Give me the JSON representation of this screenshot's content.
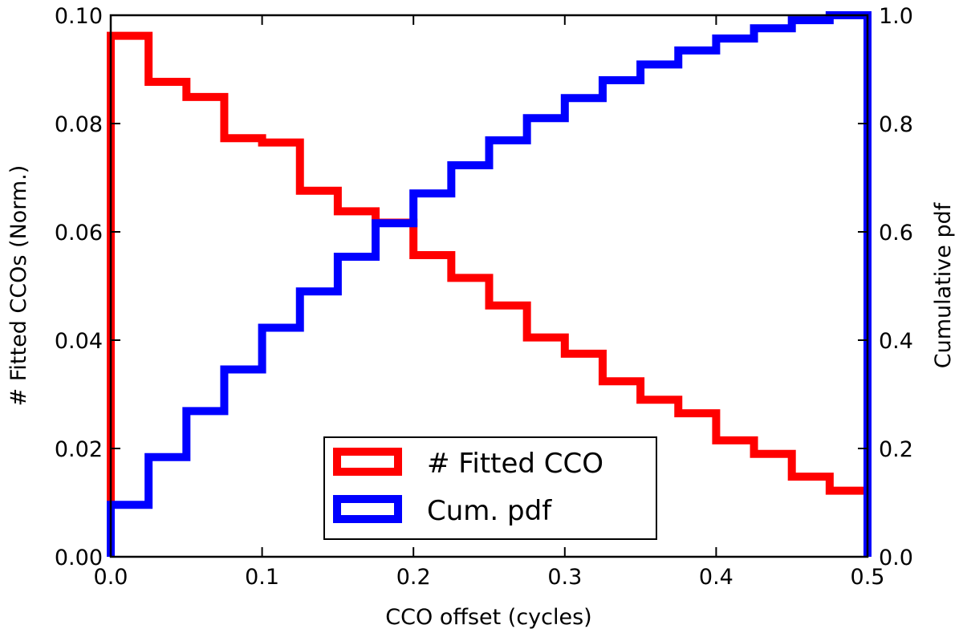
{
  "chart_data": {
    "type": "step",
    "xlabel": "CCO offset (cycles)",
    "ylabel_left": "# Fitted CCOs (Norm.)",
    "ylabel_right": "Cumulative pdf",
    "xlim": [
      0.0,
      0.5
    ],
    "ylim_left": [
      0.0,
      0.1
    ],
    "ylim_right": [
      0.0,
      1.0
    ],
    "x_ticks": [
      "0.0",
      "0.1",
      "0.2",
      "0.3",
      "0.4",
      "0.5"
    ],
    "y_left_ticks": [
      "0.00",
      "0.02",
      "0.04",
      "0.06",
      "0.08",
      "0.10"
    ],
    "y_right_ticks": [
      "0.0",
      "0.2",
      "0.4",
      "0.6",
      "0.8",
      "1.0"
    ],
    "bin_edges": [
      0.0,
      0.025,
      0.05,
      0.075,
      0.1,
      0.125,
      0.15,
      0.175,
      0.2,
      0.225,
      0.25,
      0.275,
      0.3,
      0.325,
      0.35,
      0.375,
      0.4,
      0.425,
      0.45,
      0.475,
      0.5
    ],
    "series": [
      {
        "name": "# Fitted CCO",
        "axis": "left",
        "color": "#ff0000",
        "values": [
          0.0962,
          0.0877,
          0.0849,
          0.0773,
          0.0765,
          0.0676,
          0.0638,
          0.0617,
          0.0557,
          0.0515,
          0.0464,
          0.0405,
          0.0375,
          0.0324,
          0.029,
          0.0265,
          0.0215,
          0.019,
          0.0148,
          0.0122
        ]
      },
      {
        "name": "Cum. pdf",
        "axis": "right",
        "color": "#0000ff",
        "values": [
          0.096,
          0.184,
          0.269,
          0.346,
          0.423,
          0.49,
          0.554,
          0.616,
          0.671,
          0.723,
          0.769,
          0.81,
          0.847,
          0.88,
          0.909,
          0.935,
          0.957,
          0.976,
          0.991,
          1.0
        ]
      }
    ],
    "legend": {
      "location": "lower-center",
      "entries": [
        "# Fitted CCO",
        "Cum. pdf"
      ]
    }
  }
}
